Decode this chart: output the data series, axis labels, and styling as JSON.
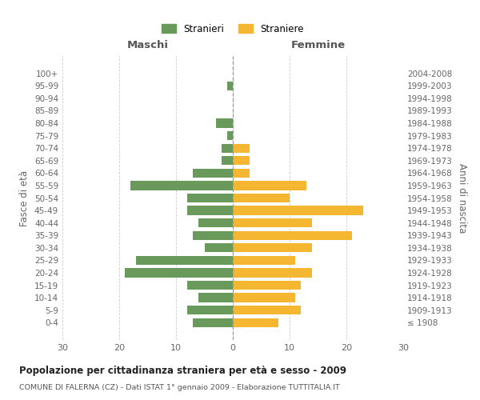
{
  "age_groups": [
    "100+",
    "95-99",
    "90-94",
    "85-89",
    "80-84",
    "75-79",
    "70-74",
    "65-69",
    "60-64",
    "55-59",
    "50-54",
    "45-49",
    "40-44",
    "35-39",
    "30-34",
    "25-29",
    "20-24",
    "15-19",
    "10-14",
    "5-9",
    "0-4"
  ],
  "birth_years": [
    "≤ 1908",
    "1909-1913",
    "1914-1918",
    "1919-1923",
    "1924-1928",
    "1929-1933",
    "1934-1938",
    "1939-1943",
    "1944-1948",
    "1949-1953",
    "1954-1958",
    "1959-1963",
    "1964-1968",
    "1969-1973",
    "1974-1978",
    "1979-1983",
    "1984-1988",
    "1989-1993",
    "1994-1998",
    "1999-2003",
    "2004-2008"
  ],
  "maschi": [
    0,
    1,
    0,
    0,
    3,
    1,
    2,
    2,
    7,
    18,
    8,
    8,
    6,
    7,
    5,
    17,
    19,
    8,
    6,
    8,
    7
  ],
  "femmine": [
    0,
    0,
    0,
    0,
    0,
    0,
    3,
    3,
    3,
    13,
    10,
    23,
    14,
    21,
    14,
    11,
    14,
    12,
    11,
    12,
    8
  ],
  "male_color": "#6a9a5b",
  "female_color": "#f5b731",
  "background_color": "#ffffff",
  "grid_color": "#cccccc",
  "title": "Popolazione per cittadinanza straniera per età e sesso - 2009",
  "subtitle": "COMUNE DI FALERNA (CZ) - Dati ISTAT 1° gennaio 2009 - Elaborazione TUTTITALIA.IT",
  "xlabel_left": "Maschi",
  "xlabel_right": "Femmine",
  "ylabel_left": "Fasce di età",
  "ylabel_right": "Anni di nascita",
  "legend_maschi": "Stranieri",
  "legend_femmine": "Straniere",
  "xlim": 30,
  "xtick_values": [
    -30,
    -20,
    -10,
    0,
    10,
    20,
    30
  ],
  "xtick_labels": [
    "30",
    "20",
    "10",
    "0",
    "10",
    "20",
    "30"
  ]
}
